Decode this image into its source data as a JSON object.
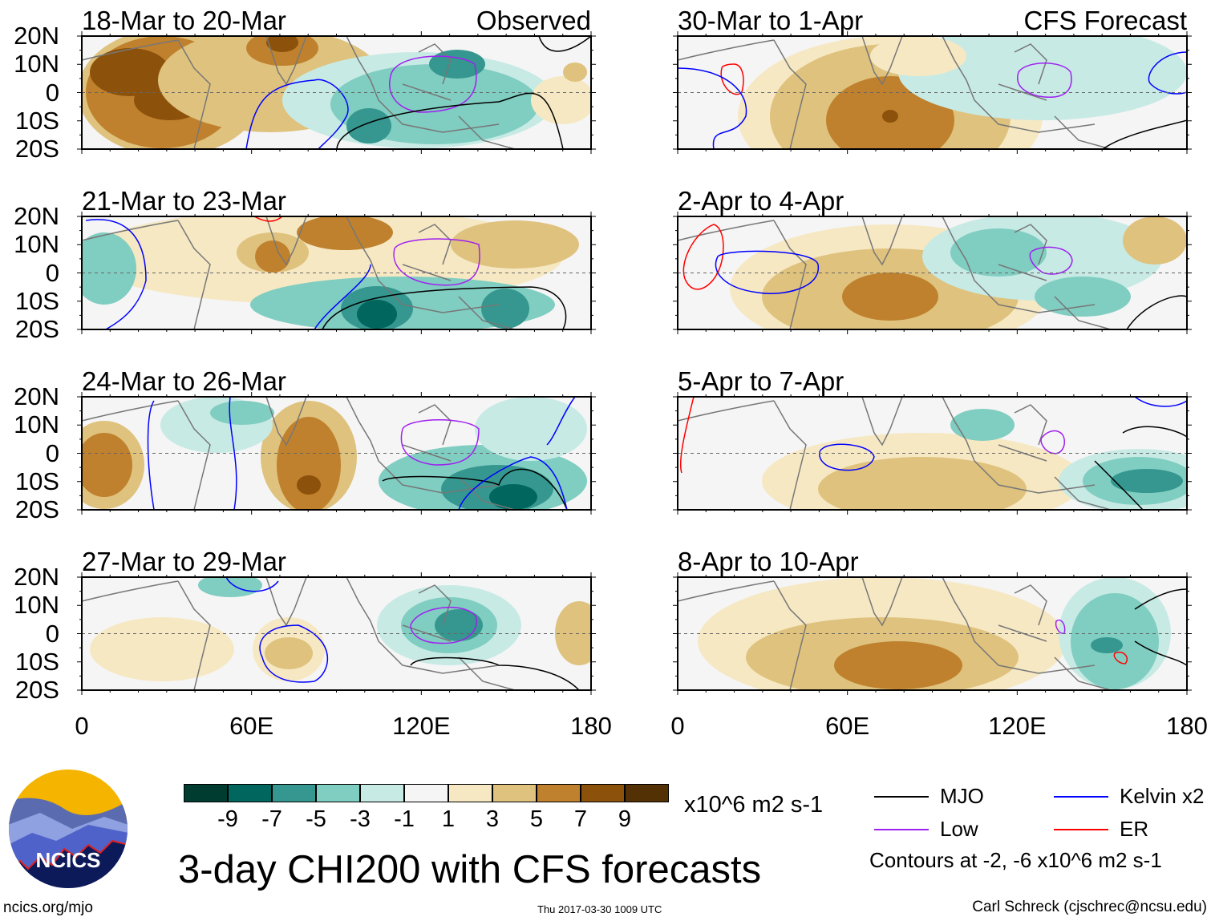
{
  "panels": [
    {
      "title": "18-Mar to 20-Mar",
      "tag": "Observed"
    },
    {
      "title": "21-Mar to 23-Mar",
      "tag": ""
    },
    {
      "title": "24-Mar to 26-Mar",
      "tag": ""
    },
    {
      "title": "27-Mar to 29-Mar",
      "tag": ""
    },
    {
      "title": "30-Mar to 1-Apr",
      "tag": "CFS Forecast"
    },
    {
      "title": "2-Apr to 4-Apr",
      "tag": ""
    },
    {
      "title": "5-Apr to 7-Apr",
      "tag": ""
    },
    {
      "title": "8-Apr to 10-Apr",
      "tag": ""
    }
  ],
  "lat_labels": [
    "20N",
    "10N",
    "0",
    "10S",
    "20S"
  ],
  "lon_labels": [
    "0",
    "60E",
    "120E",
    "180"
  ],
  "colorbar": {
    "colors": [
      "#003c30",
      "#01665e",
      "#35978f",
      "#80cdc1",
      "#c7eae5",
      "#f5f5f5",
      "#f6e8c3",
      "#dfc27d",
      "#bf812d",
      "#8c510a",
      "#543005"
    ],
    "labels": [
      "-9",
      "-7",
      "-5",
      "-3",
      "-1",
      "1",
      "3",
      "5",
      "7",
      "9"
    ],
    "units": "x10^6 m2 s-1"
  },
  "legend": {
    "items": [
      {
        "label": "MJO",
        "color": "#000000"
      },
      {
        "label": "Kelvin x2",
        "color": "#0000ff"
      },
      {
        "label": "Low",
        "color": "#a020f0"
      },
      {
        "label": "ER",
        "color": "#ff0000"
      }
    ],
    "contours_note": "Contours at -2, -6 x10^6 m2 s-1"
  },
  "title": "3-day CHI200 with CFS forecasts",
  "footer": {
    "url": "ncics.org/mjo",
    "timestamp": "Thu 2017-03-30 1009 UTC",
    "author": "Carl Schreck (cjschrec@ncsu.edu)"
  },
  "logo": {
    "text": "NCICS"
  }
}
